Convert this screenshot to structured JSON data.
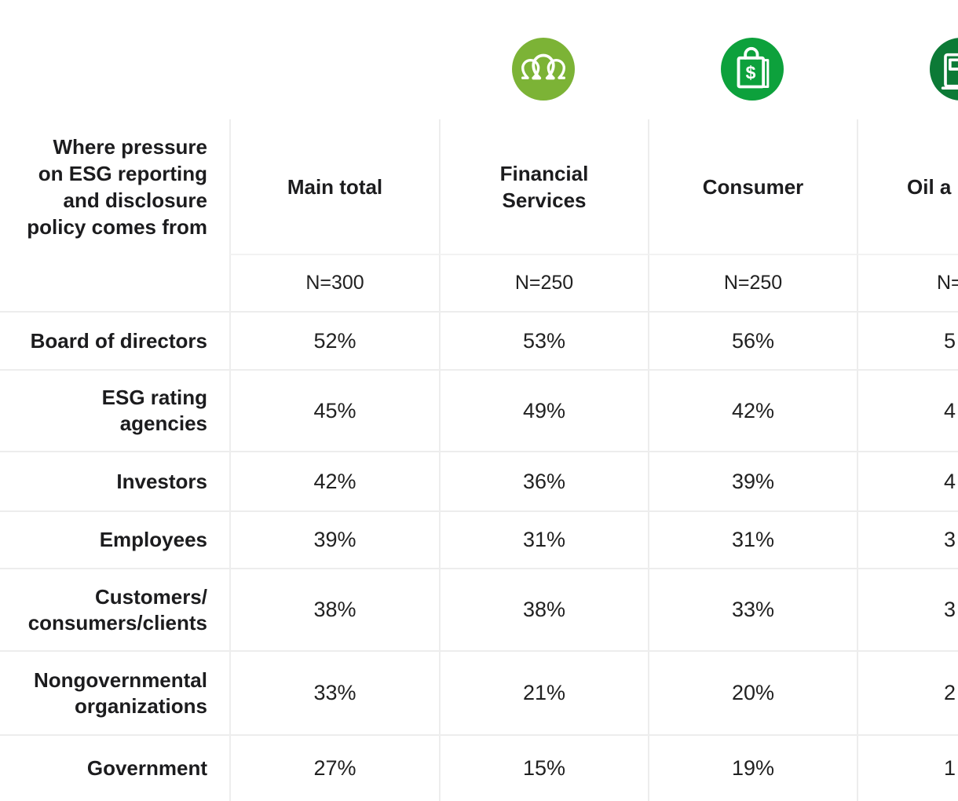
{
  "page": {
    "background": "#FFFFFF"
  },
  "colors": {
    "grid_line": "#EDEDED",
    "subheader_line": "#F2F2F2",
    "text": "#1E1E1E",
    "icon_financial_services": "#7CB336",
    "icon_consumer": "#0DA13C",
    "icon_oil_gas": "#0C7A36"
  },
  "icons": [
    {
      "name": "people-group-icon",
      "sector": "Financial Services",
      "color": "#7CB336"
    },
    {
      "name": "shopping-bag-dollar-icon",
      "sector": "Consumer",
      "color": "#0DA13C"
    },
    {
      "name": "gas-pump-icon",
      "sector": "Oil and Gas (circle cut off at right edge)",
      "color": "#0C7A36"
    }
  ],
  "table": {
    "title": "Where pressure\non ESG reporting\nand disclosure\npolicy comes from",
    "columns": [
      {
        "label": "Main total",
        "n": "N=300"
      },
      {
        "label": "Financial Services",
        "n": "N=250"
      },
      {
        "label": "Consumer",
        "n": "N=250"
      },
      {
        "label": "Oil a",
        "n": "N=",
        "truncated": true
      }
    ],
    "rows": [
      {
        "label": "Board of directors",
        "values": [
          "52%",
          "53%",
          "56%",
          "5"
        ]
      },
      {
        "label": "ESG rating\nagencies",
        "values": [
          "45%",
          "49%",
          "42%",
          "4"
        ]
      },
      {
        "label": "Investors",
        "values": [
          "42%",
          "36%",
          "39%",
          "4"
        ]
      },
      {
        "label": "Employees",
        "values": [
          "39%",
          "31%",
          "31%",
          "3"
        ]
      },
      {
        "label": "Customers/\nconsumers/clients",
        "values": [
          "38%",
          "38%",
          "33%",
          "3"
        ]
      },
      {
        "label": "Nongovernmental organizations",
        "values": [
          "33%",
          "21%",
          "20%",
          "2"
        ]
      },
      {
        "label": "Government",
        "values": [
          "27%",
          "15%",
          "19%",
          "1"
        ]
      }
    ]
  },
  "chart_data": {
    "type": "table",
    "title": "Where pressure on ESG reporting and disclosure policy comes from",
    "columns": [
      "Main total",
      "Financial Services",
      "Consumer",
      "Oil a… (cut off at right screen edge)"
    ],
    "sample_sizes": [
      300,
      250,
      250,
      null
    ],
    "rows": [
      {
        "label": "Board of directors",
        "values_pct": [
          52,
          53,
          56,
          null
        ],
        "fourth_column_first_digit": 5
      },
      {
        "label": "ESG rating agencies",
        "values_pct": [
          45,
          49,
          42,
          null
        ],
        "fourth_column_first_digit": 4
      },
      {
        "label": "Investors",
        "values_pct": [
          42,
          36,
          39,
          null
        ],
        "fourth_column_first_digit": 4
      },
      {
        "label": "Employees",
        "values_pct": [
          39,
          31,
          31,
          null
        ],
        "fourth_column_first_digit": 3
      },
      {
        "label": "Customers/consumers/clients",
        "values_pct": [
          38,
          38,
          33,
          null
        ],
        "fourth_column_first_digit": 3
      },
      {
        "label": "Nongovernmental organizations",
        "values_pct": [
          33,
          21,
          20,
          null
        ],
        "fourth_column_first_digit": 2
      },
      {
        "label": "Government",
        "values_pct": [
          27,
          15,
          19,
          null
        ],
        "fourth_column_first_digit": 1
      }
    ],
    "notes": "Fourth column (Oil a…) and the bottom of the Government row are cropped by the screenshot edges; only the first digit of each fourth-column value and 'N=' are visible."
  }
}
